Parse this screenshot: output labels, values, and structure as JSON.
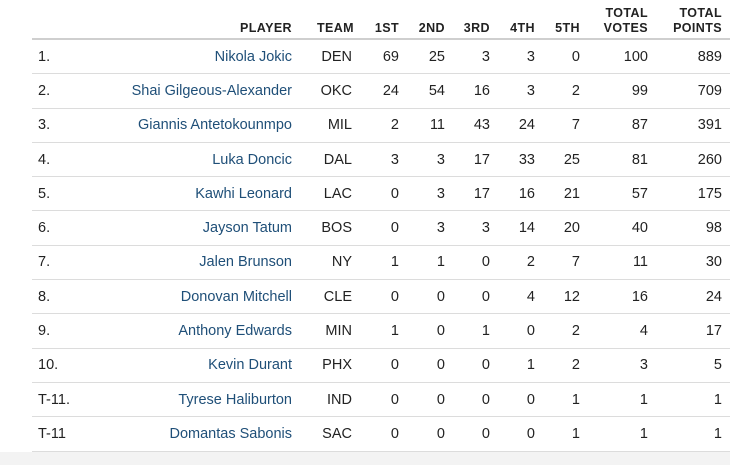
{
  "columns": {
    "rank": "",
    "player": "PLAYER",
    "team": "TEAM",
    "first": "1ST",
    "second": "2ND",
    "third": "3RD",
    "fourth": "4TH",
    "fifth": "5TH",
    "total_votes": [
      "TOTAL",
      "VOTES"
    ],
    "total_points": [
      "TOTAL",
      "POINTS"
    ]
  },
  "rows": [
    {
      "rank": "1.",
      "player": "Nikola Jokic",
      "team": "DEN",
      "first": "69",
      "second": "25",
      "third": "3",
      "fourth": "3",
      "fifth": "0",
      "total_votes": "100",
      "total_points": "889"
    },
    {
      "rank": "2.",
      "player": "Shai Gilgeous-Alexander",
      "team": "OKC",
      "first": "24",
      "second": "54",
      "third": "16",
      "fourth": "3",
      "fifth": "2",
      "total_votes": "99",
      "total_points": "709"
    },
    {
      "rank": "3.",
      "player": "Giannis Antetokounmpo",
      "team": "MIL",
      "first": "2",
      "second": "11",
      "third": "43",
      "fourth": "24",
      "fifth": "7",
      "total_votes": "87",
      "total_points": "391"
    },
    {
      "rank": "4.",
      "player": "Luka Doncic",
      "team": "DAL",
      "first": "3",
      "second": "3",
      "third": "17",
      "fourth": "33",
      "fifth": "25",
      "total_votes": "81",
      "total_points": "260"
    },
    {
      "rank": "5.",
      "player": "Kawhi Leonard",
      "team": "LAC",
      "first": "0",
      "second": "3",
      "third": "17",
      "fourth": "16",
      "fifth": "21",
      "total_votes": "57",
      "total_points": "175"
    },
    {
      "rank": "6.",
      "player": "Jayson Tatum",
      "team": "BOS",
      "first": "0",
      "second": "3",
      "third": "3",
      "fourth": "14",
      "fifth": "20",
      "total_votes": "40",
      "total_points": "98"
    },
    {
      "rank": "7.",
      "player": "Jalen Brunson",
      "team": "NY",
      "first": "1",
      "second": "1",
      "third": "0",
      "fourth": "2",
      "fifth": "7",
      "total_votes": "11",
      "total_points": "30"
    },
    {
      "rank": "8.",
      "player": "Donovan Mitchell",
      "team": "CLE",
      "first": "0",
      "second": "0",
      "third": "0",
      "fourth": "4",
      "fifth": "12",
      "total_votes": "16",
      "total_points": "24"
    },
    {
      "rank": "9.",
      "player": "Anthony Edwards",
      "team": "MIN",
      "first": "1",
      "second": "0",
      "third": "1",
      "fourth": "0",
      "fifth": "2",
      "total_votes": "4",
      "total_points": "17"
    },
    {
      "rank": "10.",
      "player": "Kevin Durant",
      "team": "PHX",
      "first": "0",
      "second": "0",
      "third": "0",
      "fourth": "1",
      "fifth": "2",
      "total_votes": "3",
      "total_points": "5"
    },
    {
      "rank": "T-11.",
      "player": "Tyrese Haliburton",
      "team": "IND",
      "first": "0",
      "second": "0",
      "third": "0",
      "fourth": "0",
      "fifth": "1",
      "total_votes": "1",
      "total_points": "1"
    },
    {
      "rank": "T-11",
      "player": "Domantas Sabonis",
      "team": "SAC",
      "first": "0",
      "second": "0",
      "third": "0",
      "fourth": "0",
      "fifth": "1",
      "total_votes": "1",
      "total_points": "1"
    }
  ]
}
